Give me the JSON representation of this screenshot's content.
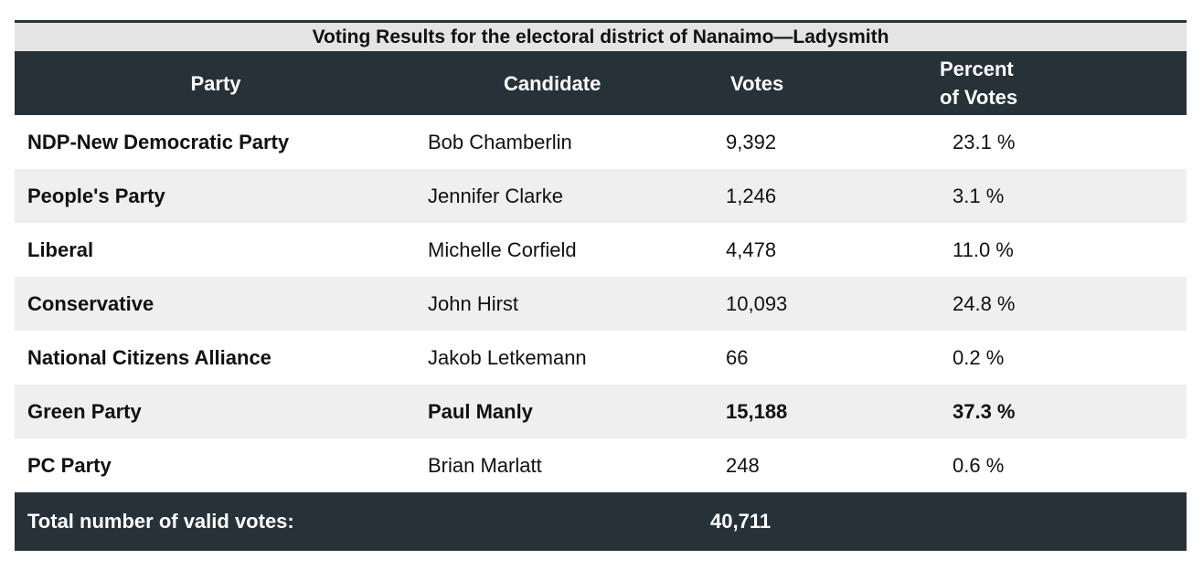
{
  "title": "Voting Results for the electoral district of Nanaimo—Ladysmith",
  "headers": {
    "party": "Party",
    "candidate": "Candidate",
    "votes": "Votes",
    "percent_line1": "Percent",
    "percent_line2": "of Votes"
  },
  "rows": [
    {
      "party": "NDP-New Democratic Party",
      "candidate": "Bob Chamberlin",
      "votes": "9,392",
      "percent": "23.1 %"
    },
    {
      "party": "People's Party",
      "candidate": "Jennifer Clarke",
      "votes": "1,246",
      "percent": "3.1 %"
    },
    {
      "party": "Liberal",
      "candidate": "Michelle Corfield",
      "votes": "4,478",
      "percent": "11.0 %"
    },
    {
      "party": "Conservative",
      "candidate": "John Hirst",
      "votes": "10,093",
      "percent": "24.8 %"
    },
    {
      "party": "National Citizens Alliance",
      "candidate": "Jakob Letkemann",
      "votes": "66",
      "percent": "0.2 %"
    },
    {
      "party": "Green Party",
      "candidate": "Paul Manly",
      "votes": "15,188",
      "percent": "37.3 %"
    },
    {
      "party": "PC Party",
      "candidate": "Brian Marlatt",
      "votes": "248",
      "percent": "0.6 %"
    }
  ],
  "total": {
    "label": "Total number of valid votes:",
    "value": "40,711"
  },
  "colors": {
    "header_bg": "#263238",
    "title_bg": "#e4e4e4",
    "stripe_bg": "#efefef"
  }
}
